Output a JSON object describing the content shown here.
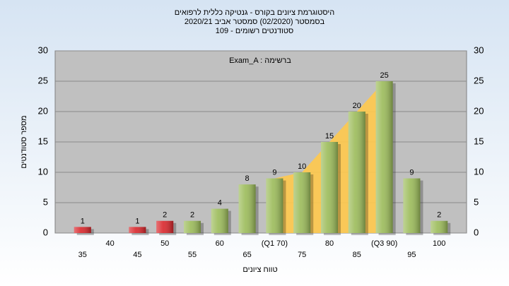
{
  "chart_data": {
    "type": "bar",
    "title": [
      "היסטוגרמת ציונים בקורס - גנטיקה כללית לרפואים",
      "בסמסטר (02/2020) סמסטר אביב 2020/21",
      "סטודנטים רשומים - 109"
    ],
    "annotation": "Exam_A : ברשימה",
    "x_label": "טווח ציונים",
    "y_label": "מספר סטודנטים",
    "categories": [
      "35",
      "40",
      "45",
      "50",
      "55",
      "60",
      "65",
      "(Q1 70)",
      "75",
      "80",
      "85",
      "(Q3 90)",
      "95",
      "100"
    ],
    "values": [
      1,
      null,
      1,
      2,
      2,
      4,
      8,
      9,
      10,
      15,
      20,
      25,
      9,
      2
    ],
    "colors": [
      "#d9262b",
      "#d9262b",
      "#d9262b",
      "#d9262b",
      "#9bbb59",
      "#9bbb59",
      "#9bbb59",
      "#9bbb59",
      "#9bbb59",
      "#9bbb59",
      "#9bbb59",
      "#9bbb59",
      "#9bbb59",
      "#9bbb59"
    ],
    "ylim": [
      0,
      30
    ],
    "yticks": [
      0,
      5,
      10,
      15,
      20,
      25,
      30
    ],
    "grid": true
  }
}
